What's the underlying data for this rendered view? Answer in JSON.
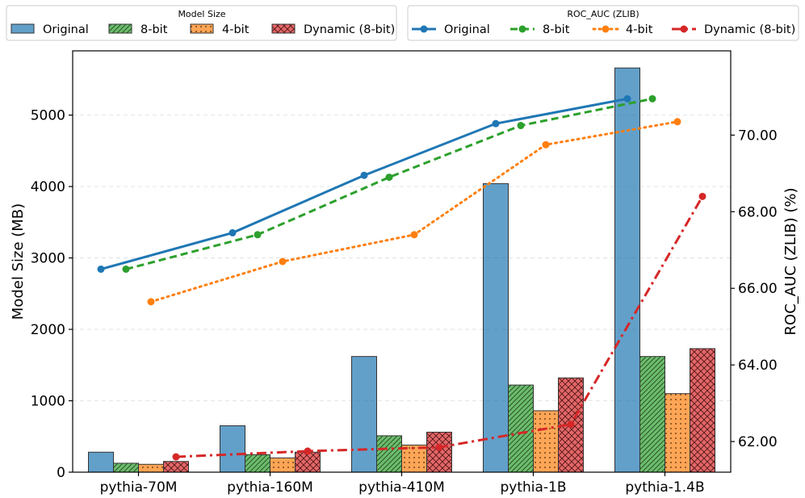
{
  "chart_data": {
    "type": "bar+line",
    "categories": [
      "pythia-70M",
      "pythia-160M",
      "pythia-410M",
      "pythia-1B",
      "pythia-1.4B"
    ],
    "ylabel_left": "Model Size (MB)",
    "ylabel_right": "ROC_AUC (ZLIB) (%)",
    "ylim_left": [
      0,
      5900
    ],
    "ylim_right": [
      61.2,
      72.2
    ],
    "yticks_left": [
      "0",
      "1000",
      "2000",
      "3000",
      "4000",
      "5000"
    ],
    "yticks_right": [
      "62.00",
      "64.00",
      "66.00",
      "68.00",
      "70.00"
    ],
    "grid": "horizontal dashed",
    "bar_legend_title": "Model Size",
    "line_legend_title": "ROC_AUC (ZLIB)",
    "bar_series": [
      {
        "name": "Original",
        "values": [
          280,
          650,
          1620,
          4040,
          5660
        ],
        "color": "#1f77b4",
        "hatch": "none"
      },
      {
        "name": "8-bit",
        "values": [
          125,
          245,
          510,
          1220,
          1620
        ],
        "color": "#2ca02c",
        "hatch": "diagonal"
      },
      {
        "name": "4-bit",
        "values": [
          110,
          200,
          380,
          860,
          1100
        ],
        "color": "#ff7f0e",
        "hatch": "dots"
      },
      {
        "name": "Dynamic (8-bit)",
        "values": [
          150,
          280,
          560,
          1320,
          1730
        ],
        "color": "#d62728",
        "hatch": "cross"
      }
    ],
    "line_series": [
      {
        "name": "Original",
        "values": [
          66.5,
          67.45,
          68.95,
          70.3,
          70.95
        ],
        "color": "#1f77b4",
        "style": "solid"
      },
      {
        "name": "8-bit",
        "values": [
          66.5,
          67.4,
          68.9,
          70.25,
          70.95
        ],
        "color": "#2ca02c",
        "style": "dashed"
      },
      {
        "name": "4-bit",
        "values": [
          65.65,
          66.7,
          67.4,
          69.75,
          70.35
        ],
        "color": "#ff7f0e",
        "style": "dotted"
      },
      {
        "name": "Dynamic (8-bit)",
        "values": [
          61.6,
          61.75,
          61.85,
          62.45,
          68.4
        ],
        "color": "#d62728",
        "style": "dashdot"
      }
    ]
  }
}
